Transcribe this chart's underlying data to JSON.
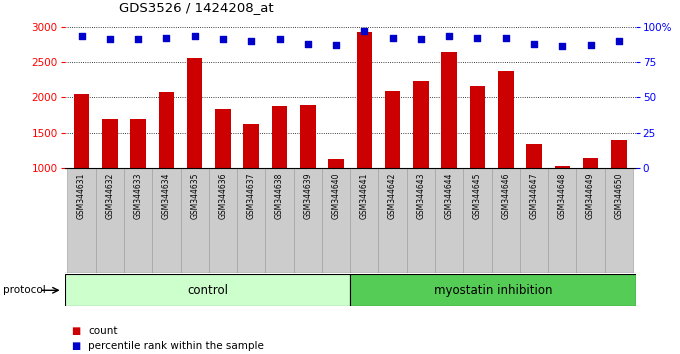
{
  "title": "GDS3526 / 1424208_at",
  "samples": [
    "GSM344631",
    "GSM344632",
    "GSM344633",
    "GSM344634",
    "GSM344635",
    "GSM344636",
    "GSM344637",
    "GSM344638",
    "GSM344639",
    "GSM344640",
    "GSM344641",
    "GSM344642",
    "GSM344643",
    "GSM344644",
    "GSM344645",
    "GSM344646",
    "GSM344647",
    "GSM344648",
    "GSM344649",
    "GSM344650"
  ],
  "counts": [
    2050,
    1700,
    1700,
    2070,
    2560,
    1840,
    1630,
    1880,
    1890,
    1130,
    2930,
    2090,
    2230,
    2640,
    2160,
    2370,
    1340,
    1030,
    1140,
    1400
  ],
  "percentiles": [
    93,
    91,
    91,
    92,
    93,
    91,
    90,
    91,
    88,
    87,
    97,
    92,
    91,
    93,
    92,
    92,
    88,
    86,
    87,
    90
  ],
  "control_count": 10,
  "ylim_left": [
    1000,
    3000
  ],
  "ylim_right": [
    0,
    100
  ],
  "yticks_left": [
    1000,
    1500,
    2000,
    2500,
    3000
  ],
  "yticks_right": [
    0,
    25,
    50,
    75,
    100
  ],
  "bar_color": "#cc0000",
  "dot_color": "#0000cc",
  "control_label": "control",
  "treatment_label": "myostatin inhibition",
  "legend_count": "count",
  "legend_pct": "percentile rank within the sample",
  "protocol_label": "protocol",
  "control_bg": "#ccffcc",
  "treatment_bg": "#55cc55"
}
